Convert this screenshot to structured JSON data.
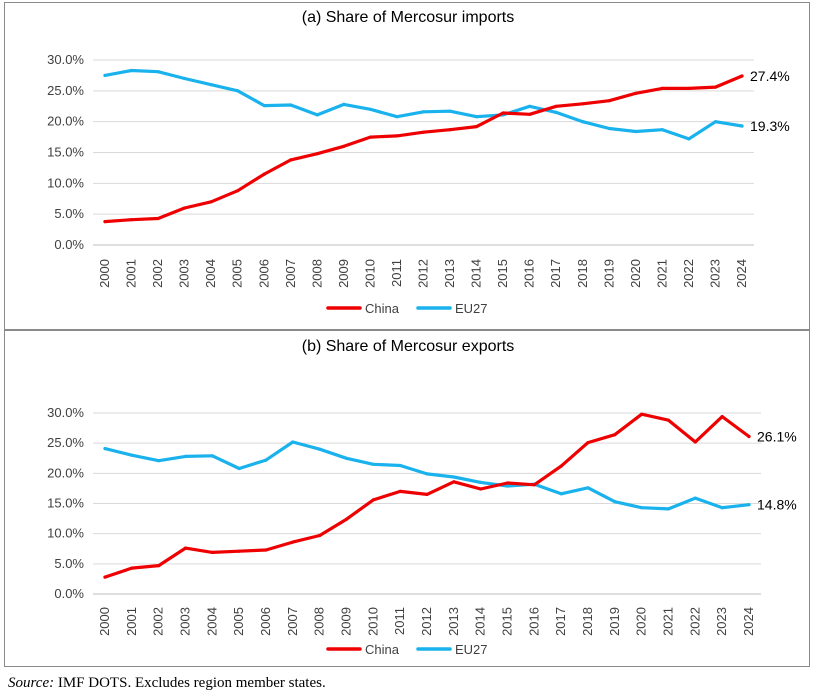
{
  "colors": {
    "china": "#ee0000",
    "eu27": "#19b2ec",
    "grid": "#d9d9d9",
    "text": "#404040"
  },
  "source": {
    "label": "Source:",
    "text": " IMF DOTS. Excludes region member states."
  },
  "chart_data": [
    {
      "type": "line",
      "title": "(a)  Share of Mercosur imports",
      "xlabel": "",
      "ylabel": "",
      "ylim": [
        0,
        30
      ],
      "yticks": [
        "0.0%",
        "5.0%",
        "10.0%",
        "15.0%",
        "20.0%",
        "25.0%",
        "30.0%"
      ],
      "x": [
        "2000",
        "2001",
        "2002",
        "2003",
        "2004",
        "2005",
        "2006",
        "2007",
        "2008",
        "2009",
        "2010",
        "2011",
        "2012",
        "2013",
        "2014",
        "2015",
        "2016",
        "2017",
        "2018",
        "2019",
        "2020",
        "2021",
        "2022",
        "2023",
        "2024"
      ],
      "series": [
        {
          "name": "China",
          "color": "#ee0000",
          "end_label": "27.4%",
          "values": [
            3.8,
            4.1,
            4.3,
            6.0,
            7.0,
            8.8,
            11.5,
            13.8,
            14.8,
            16.0,
            17.5,
            17.7,
            18.3,
            18.7,
            19.2,
            21.4,
            21.2,
            22.5,
            22.9,
            23.4,
            24.6,
            25.4,
            25.4,
            25.6,
            27.4
          ]
        },
        {
          "name": "EU27",
          "color": "#19b2ec",
          "end_label": "19.3%",
          "values": [
            27.5,
            28.3,
            28.1,
            27.0,
            26.0,
            25.0,
            22.6,
            22.7,
            21.1,
            22.8,
            22.0,
            20.8,
            21.6,
            21.7,
            20.8,
            21.1,
            22.5,
            21.5,
            20.0,
            18.9,
            18.4,
            18.7,
            17.2,
            20.0,
            19.3
          ]
        }
      ],
      "legend": "bottom"
    },
    {
      "type": "line",
      "title": "(b)  Share of Mercosur exports",
      "xlabel": "",
      "ylabel": "",
      "ylim": [
        0,
        30
      ],
      "yticks": [
        "0.0%",
        "5.0%",
        "10.0%",
        "15.0%",
        "20.0%",
        "25.0%",
        "30.0%"
      ],
      "x": [
        "2000",
        "2001",
        "2002",
        "2003",
        "2004",
        "2005",
        "2006",
        "2007",
        "2008",
        "2009",
        "2010",
        "2011",
        "2012",
        "2013",
        "2014",
        "2015",
        "2016",
        "2017",
        "2018",
        "2019",
        "2020",
        "2021",
        "2022",
        "2023",
        "2024"
      ],
      "series": [
        {
          "name": "China",
          "color": "#ee0000",
          "end_label": "26.1%",
          "values": [
            2.8,
            4.3,
            4.7,
            7.6,
            6.9,
            7.1,
            7.3,
            8.6,
            9.7,
            12.4,
            15.6,
            17.0,
            16.5,
            18.6,
            17.4,
            18.4,
            18.1,
            21.2,
            25.1,
            26.4,
            29.8,
            28.8,
            25.2,
            29.4,
            26.1
          ]
        },
        {
          "name": "EU27",
          "color": "#19b2ec",
          "end_label": "14.8%",
          "values": [
            24.1,
            23.0,
            22.1,
            22.8,
            22.9,
            20.8,
            22.2,
            25.2,
            24.0,
            22.5,
            21.5,
            21.3,
            19.9,
            19.4,
            18.5,
            17.9,
            18.2,
            16.6,
            17.6,
            15.3,
            14.3,
            14.1,
            15.9,
            14.3,
            14.8
          ]
        }
      ],
      "legend": "bottom"
    }
  ]
}
